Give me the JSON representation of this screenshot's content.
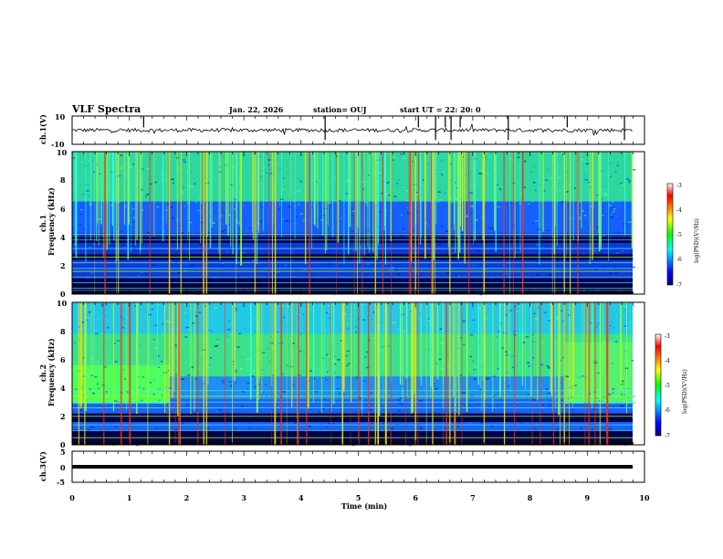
{
  "header": {
    "title": "VLF Spectra",
    "date": "Jan. 22, 2026",
    "station": "station= OUJ",
    "start": "start  UT  =   22: 20: 0"
  },
  "chart_data": {
    "type": "heatmap",
    "x_label": "Time  (min)",
    "x_range": [
      0,
      10
    ],
    "x_ticks": [
      "0",
      "1",
      "2",
      "3",
      "4",
      "5",
      "6",
      "7",
      "8",
      "9",
      "10"
    ],
    "panels": [
      {
        "id": "ch1-wave",
        "kind": "waveform",
        "ylabel": "ch.1(V)",
        "ylim": [
          -10,
          10
        ],
        "y_ticks": [
          "10",
          "-10"
        ]
      },
      {
        "id": "ch1-spec",
        "kind": "spectrogram",
        "ylabel1": "ch.1",
        "ylabel2": "Frequency (kHz)",
        "ylim": [
          0,
          10
        ],
        "y_ticks": [
          "0",
          "2",
          "4",
          "6",
          "8",
          "10"
        ],
        "colorbar": {
          "label": "log(PSD)(V²/Hz)",
          "range": [
            -7,
            -3
          ],
          "ticks": [
            "-3",
            "-4",
            "-5",
            "-6",
            "-7"
          ]
        },
        "dark_bands_khz": [
          [
            0.3,
            1.1
          ],
          [
            2.4,
            2.8
          ],
          [
            3.6,
            4.0
          ]
        ],
        "bright_lines_khz": [
          0.4,
          0.8,
          1.2,
          1.6,
          1.8,
          2.2,
          2.6,
          3.2,
          3.8,
          4.2
        ]
      },
      {
        "id": "ch2-spec",
        "kind": "spectrogram",
        "ylabel1": "ch.2",
        "ylabel2": "Frequency (kHz)",
        "ylim": [
          0,
          10
        ],
        "y_ticks": [
          "0",
          "2",
          "4",
          "6",
          "8",
          "10"
        ],
        "colorbar": {
          "label": "log(PSD)(V²/Hz)",
          "range": [
            -7,
            -3
          ],
          "ticks": [
            "-3",
            "-4",
            "-5",
            "-6",
            "-7"
          ]
        },
        "dark_bands_khz": [
          [
            0.2,
            1.0
          ],
          [
            1.6,
            2.2
          ]
        ],
        "bright_lines_khz": [
          0.5,
          1.0,
          1.4,
          2.0,
          2.6,
          3.0,
          3.4,
          3.8
        ]
      },
      {
        "id": "ch3-wave",
        "kind": "waveform",
        "ylabel": "ch.3(V)",
        "ylim": [
          -5,
          5
        ],
        "y_ticks": [
          "5",
          "0",
          "-5"
        ],
        "level_v": 0
      }
    ]
  }
}
